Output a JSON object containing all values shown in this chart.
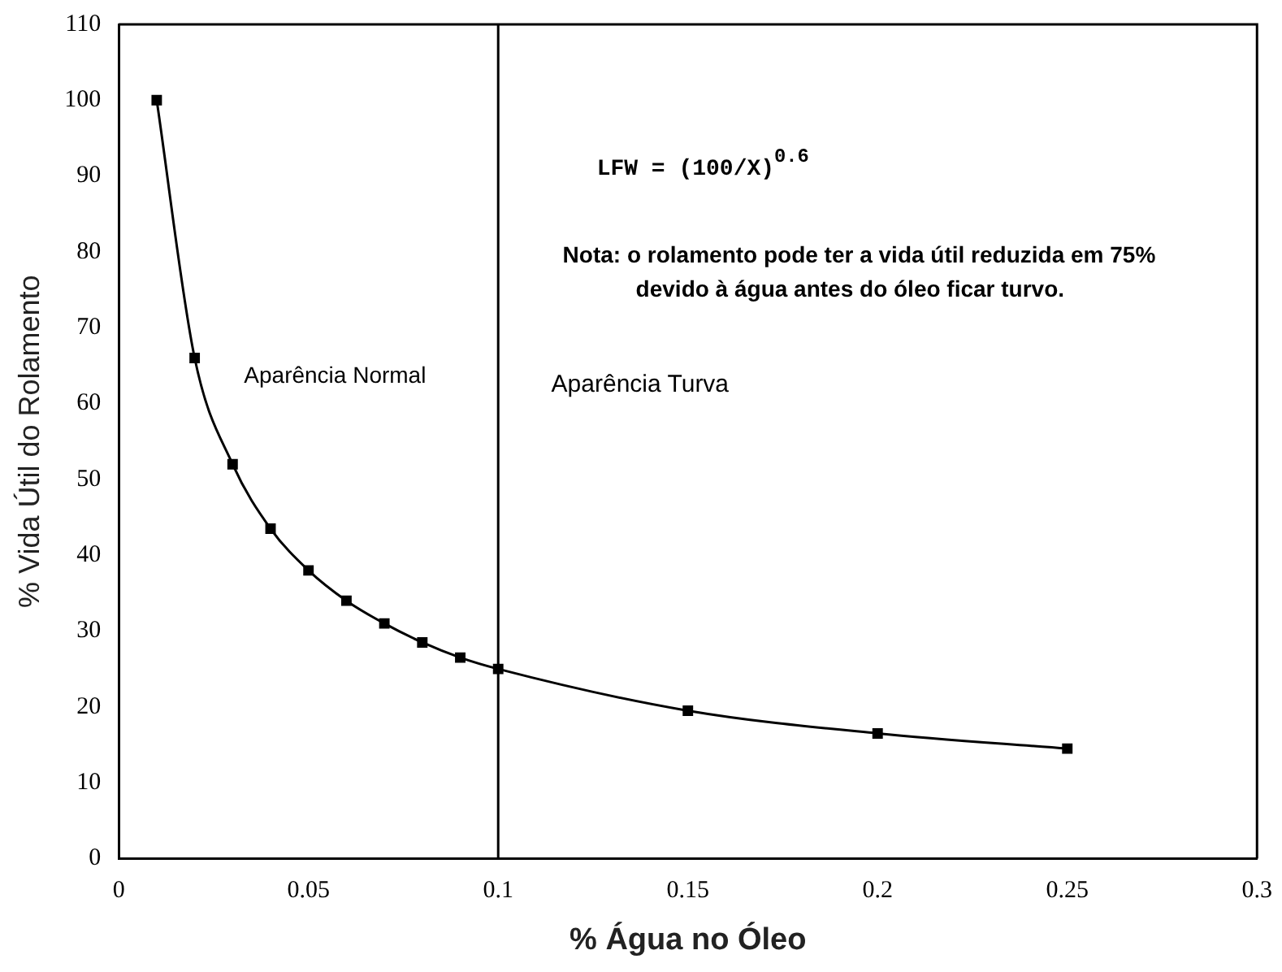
{
  "chart_data": {
    "type": "line",
    "xlabel": "% Água no Óleo",
    "ylabel": "% Vida Útil do Rolamento",
    "x": [
      0.01,
      0.02,
      0.03,
      0.04,
      0.05,
      0.06,
      0.07,
      0.08,
      0.09,
      0.1,
      0.15,
      0.2,
      0.25
    ],
    "series": [
      {
        "color": "#000000",
        "values": [
          100,
          66,
          52,
          43.5,
          38,
          34,
          31,
          28.5,
          26.5,
          25,
          19.5,
          16.5,
          14.5
        ]
      }
    ],
    "xlim": [
      0,
      0.3
    ],
    "xticks": [
      0,
      0.05,
      0.1,
      0.15,
      0.2,
      0.25,
      0.3
    ],
    "ylim": [
      0,
      110
    ],
    "yticks": [
      0,
      10,
      20,
      30,
      40,
      50,
      60,
      70,
      80,
      90,
      100,
      110
    ],
    "grid": false,
    "legend": false,
    "marker": "square",
    "line_style": "solid",
    "ref_lines": [
      {
        "axis": "x",
        "value": 0.1,
        "color": "#000000"
      }
    ],
    "annotations": [
      "Aparência Normal",
      "Aparência Turva",
      "LFW = (100/X)$^{0.6}$",
      "Nota: o rolamento pode ter a vida útil reduzida em 75% devido à água antes do óleo ficar turvo."
    ]
  }
}
